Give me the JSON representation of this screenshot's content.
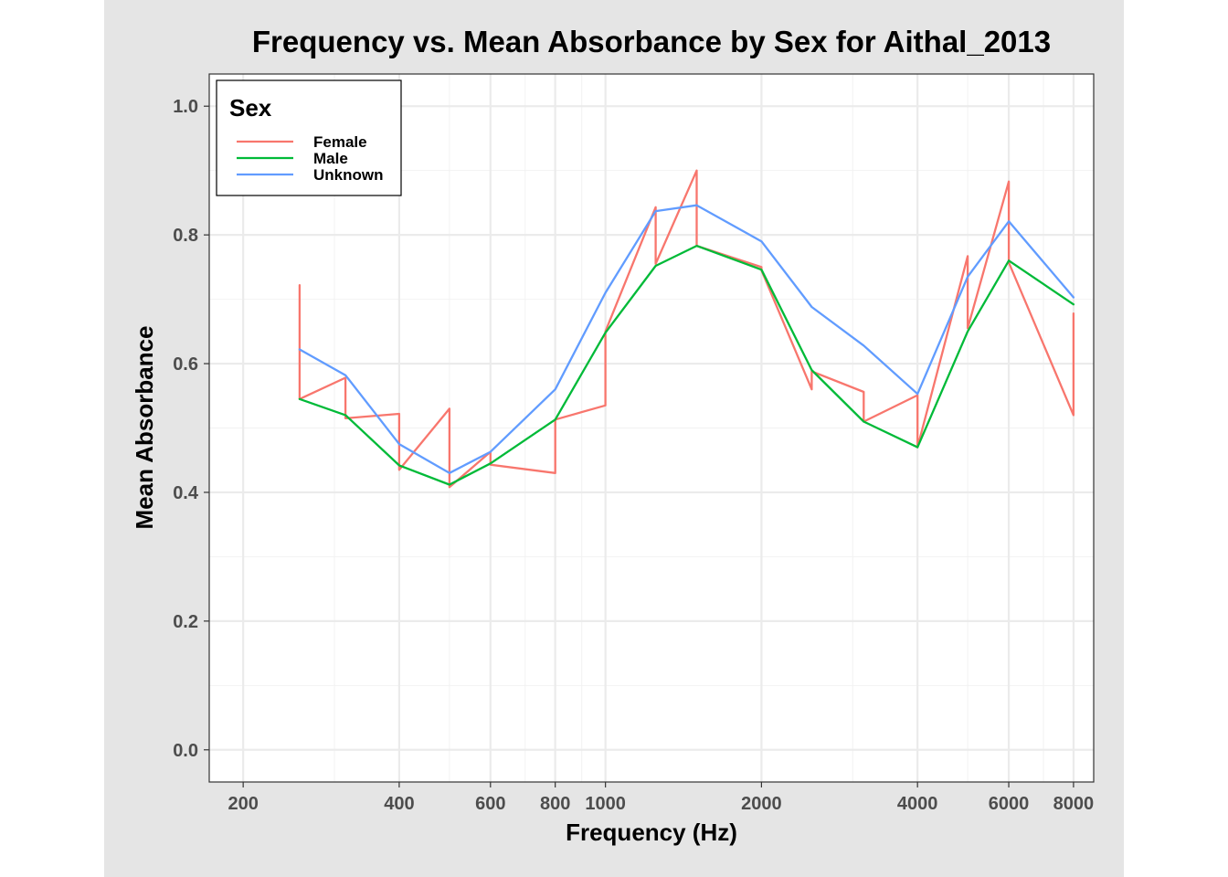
{
  "chart_data": {
    "type": "line",
    "title": "Frequency vs. Mean Absorbance by Sex for Aithal_2013",
    "xlabel": "Frequency (Hz)",
    "ylabel": "Mean Absorbance",
    "x_scale": "log10",
    "xlim": [
      172,
      8750
    ],
    "ylim": [
      -0.05,
      1.05
    ],
    "x_ticks": [
      200,
      400,
      600,
      800,
      1000,
      2000,
      4000,
      6000,
      8000
    ],
    "x_tick_labels": [
      "200",
      "400",
      "600",
      "800",
      "1000",
      "2000",
      "4000",
      "6000",
      "8000"
    ],
    "y_ticks": [
      0.0,
      0.2,
      0.4,
      0.6,
      0.8,
      1.0
    ],
    "y_tick_labels": [
      "0.0",
      "0.2",
      "0.4",
      "0.6",
      "0.8",
      "1.0"
    ],
    "grid": true,
    "legend": {
      "title": "Sex",
      "position": "top-left"
    },
    "series": [
      {
        "name": "Female",
        "color": "#F8766D",
        "x": [
          257,
          257,
          315,
          315,
          400,
          400,
          500,
          500,
          600,
          600,
          800,
          800,
          1000,
          1000,
          1250,
          1250,
          1500,
          1500,
          2000,
          2000,
          2500,
          2500,
          3150,
          3150,
          4000,
          4000,
          5000,
          5000,
          6000,
          6000,
          8000,
          8000
        ],
        "values": [
          0.722,
          0.545,
          0.578,
          0.515,
          0.522,
          0.435,
          0.53,
          0.408,
          0.463,
          0.443,
          0.43,
          0.513,
          0.535,
          0.65,
          0.843,
          0.755,
          0.9,
          0.783,
          0.75,
          0.745,
          0.56,
          0.588,
          0.556,
          0.51,
          0.551,
          0.47,
          0.767,
          0.655,
          0.883,
          0.757,
          0.52,
          0.678
        ]
      },
      {
        "name": "Male",
        "color": "#00BA38",
        "x": [
          257,
          315,
          400,
          500,
          600,
          800,
          1000,
          1250,
          1500,
          2000,
          2500,
          3150,
          4000,
          5000,
          6000,
          8000
        ],
        "values": [
          0.545,
          0.52,
          0.442,
          0.412,
          0.445,
          0.513,
          0.648,
          0.752,
          0.783,
          0.746,
          0.59,
          0.51,
          0.47,
          0.65,
          0.76,
          0.692
        ]
      },
      {
        "name": "Unknown",
        "color": "#619CFF",
        "x": [
          257,
          315,
          400,
          500,
          600,
          800,
          1000,
          1250,
          1500,
          2000,
          2500,
          3150,
          4000,
          5000,
          6000,
          8000
        ],
        "values": [
          0.622,
          0.582,
          0.475,
          0.43,
          0.463,
          0.56,
          0.71,
          0.837,
          0.846,
          0.79,
          0.688,
          0.628,
          0.553,
          0.735,
          0.821,
          0.703
        ]
      }
    ]
  }
}
